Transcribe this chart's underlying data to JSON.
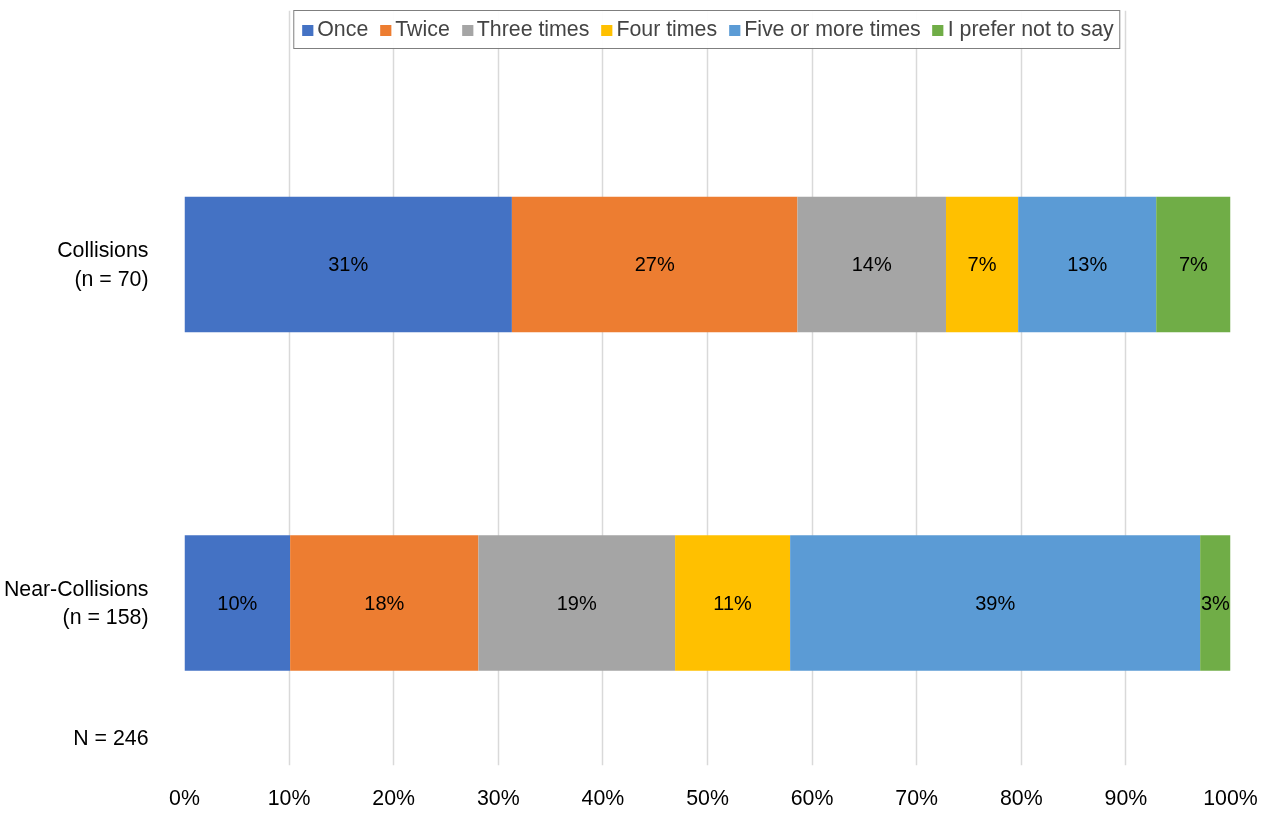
{
  "chart_data": {
    "type": "bar",
    "orientation": "horizontal",
    "stacked": true,
    "categories": [
      "Collisions\n(n = 70)",
      "Near-Collisions\n(n = 158)"
    ],
    "series": [
      {
        "name": "Once",
        "color": "#4472c4",
        "values": [
          31.3,
          10.1
        ],
        "value_labels": [
          "31%",
          "10%"
        ]
      },
      {
        "name": "Twice",
        "color": "#ed7d31",
        "values": [
          27.3,
          18.0
        ],
        "value_labels": [
          "27%",
          "18%"
        ]
      },
      {
        "name": "Three times",
        "color": "#a5a5a5",
        "values": [
          14.2,
          18.8
        ],
        "value_labels": [
          "14%",
          "19%"
        ]
      },
      {
        "name": "Four times",
        "color": "#ffc000",
        "values": [
          6.9,
          11.0
        ],
        "value_labels": [
          "7%",
          "11%"
        ]
      },
      {
        "name": "Five or more times",
        "color": "#5b9bd5",
        "values": [
          13.2,
          39.2
        ],
        "value_labels": [
          "13%",
          "39%"
        ]
      },
      {
        "name": "I prefer not to say",
        "color": "#70ad47",
        "values": [
          7.1,
          2.9
        ],
        "value_labels": [
          "7%",
          "3%"
        ]
      }
    ],
    "xlim": [
      0,
      100
    ],
    "xticks": [
      {
        "value": 0,
        "label": "0%"
      },
      {
        "value": 10,
        "label": "10%"
      },
      {
        "value": 20,
        "label": "20%"
      },
      {
        "value": 30,
        "label": "30%"
      },
      {
        "value": 40,
        "label": "40%"
      },
      {
        "value": 50,
        "label": "50%"
      },
      {
        "value": 60,
        "label": "60%"
      },
      {
        "value": 70,
        "label": "70%"
      },
      {
        "value": 80,
        "label": "80%"
      },
      {
        "value": 90,
        "label": "90%"
      },
      {
        "value": 100,
        "label": "100%"
      }
    ],
    "grid": "x",
    "legend": "top",
    "annotations": [
      "N = 246"
    ]
  }
}
